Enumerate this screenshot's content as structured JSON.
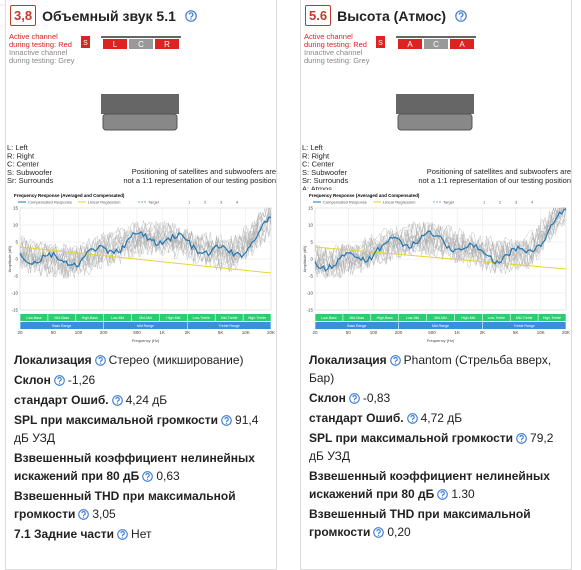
{
  "chart": {
    "title": "Frequency Response (Averaged and Compensated)",
    "legend": [
      "Compensated Response",
      "Linear Regression",
      "Target"
    ],
    "pager": [
      "1",
      "2",
      "3",
      "4"
    ],
    "ylabel": "Amplitude (dB)",
    "xlabel": "Frequency (Hz)",
    "ylim": [
      -15,
      15
    ],
    "yticks": [
      15,
      10,
      5,
      0,
      -5,
      -10,
      -15
    ],
    "xlim": [
      20,
      20000
    ],
    "xticks": [
      20,
      50,
      100,
      200,
      500,
      {
        "value": 1000,
        "label": "1K"
      },
      {
        "value": 2000,
        "label": "2K"
      },
      {
        "value": 5000,
        "label": "5K"
      },
      {
        "value": 10000,
        "label": "10K"
      },
      {
        "value": 20000,
        "label": "20K"
      }
    ],
    "bands": [
      "Low-Bass",
      "Mid-Bass",
      "High-Bass",
      "Low-Mid",
      "Mid-Mid",
      "High-Mid",
      "Low-Treble",
      "Mid-Treble",
      "High-Treble"
    ],
    "ranges": [
      "Bass Range",
      "Mid Range",
      "Treble Range"
    ]
  },
  "cards": [
    {
      "score": "3,8",
      "title": "Объемный звук 5.1",
      "active": [
        "Active channel",
        "during testing: Red"
      ],
      "inactive": [
        "Innactive channel",
        "during testing: Grey"
      ],
      "sub": "S",
      "channels": [
        {
          "label": "L",
          "active": true
        },
        {
          "label": "C",
          "active": false
        },
        {
          "label": "R",
          "active": true
        }
      ],
      "key": [
        "L: Left",
        "R: Right",
        "C: Center",
        "S: Subwoofer",
        "Sr: Surrounds"
      ],
      "note": [
        "Positioning of satellites and subwoofers are",
        "not a 1:1 representation of our testing position"
      ],
      "props": [
        {
          "label": "Локализация",
          "value": "Стерео (микширование)"
        },
        {
          "label": "Склон",
          "value": "-1,26"
        },
        {
          "label": "стандарт Ошиб.",
          "value": "4,24 дБ"
        },
        {
          "label": "SPL при максимальной громкости",
          "value": "91,4 дБ УЗД"
        },
        {
          "label": "Взвешенный коэффициент нелинейных искажений при 80 дБ",
          "value": "0,63"
        },
        {
          "label": "Взвешенный THD при максимальной громкости",
          "value": "3,05"
        },
        {
          "label": "7.1 Задние части",
          "value": "Нет"
        }
      ]
    },
    {
      "score": "5.6",
      "title": "Высота (Атмос)",
      "active": [
        "Active channel",
        "during testing: Red"
      ],
      "inactive": [
        "Innactive channel",
        "during testing: Grey"
      ],
      "sub": "S",
      "channels": [
        {
          "label": "A",
          "active": true
        },
        {
          "label": "C",
          "active": false
        },
        {
          "label": "A",
          "active": true
        }
      ],
      "key": [
        "L: Left",
        "R: Right",
        "C: Center",
        "S: Subwoofer",
        "Sr: Surrounds",
        "A: Atmos"
      ],
      "note": [
        "Positioning of satellites and subwoofers are",
        "not a 1:1 representation of our testing position"
      ],
      "props": [
        {
          "label": "Локализация",
          "value": "Phantom (Стрельба вверх, Бар)"
        },
        {
          "label": "Склон",
          "value": "-0,83"
        },
        {
          "label": "стандарт Ошиб.",
          "value": "4,72 дБ"
        },
        {
          "label": "SPL при максимальной громкости",
          "value": "79,2 дБ УЗД"
        },
        {
          "label": "Взвешенный коэффициент нелинейных искажений при 80 дБ",
          "value": "1.30"
        },
        {
          "label": "Взвешенный THD при максимальной громкости",
          "value": "0,20"
        }
      ]
    }
  ]
}
